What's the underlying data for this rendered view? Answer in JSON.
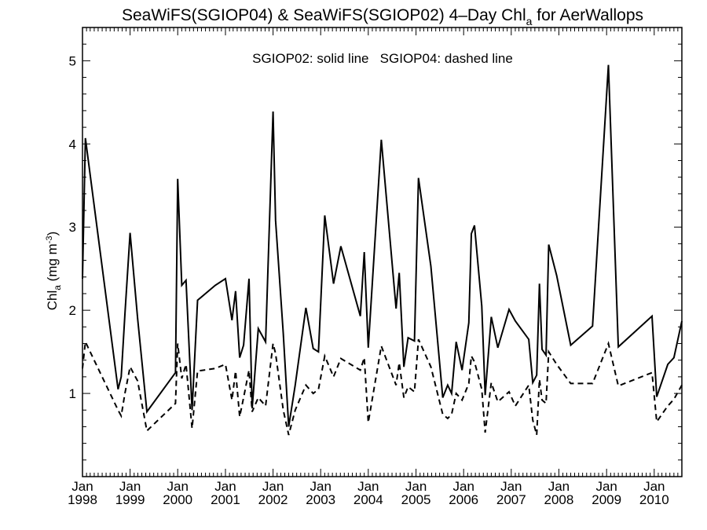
{
  "chart_data": {
    "type": "line",
    "title": {
      "main": "SeaWiFS(SGIOP04) & SeaWiFS(SGIOP02) 4–Day Chl",
      "sub": "a",
      "tail": " for AerWallops"
    },
    "legend": "SGIOP02: solid line   SGIOP04: dashed line",
    "ylabel": {
      "main": "Chl",
      "sub": "a",
      "unit": " (mg m",
      "sup": "-3",
      "close": ")"
    },
    "yticks": [
      "1",
      "2",
      "3",
      "4",
      "5"
    ],
    "xticks": [
      {
        "month": "Jan",
        "year": "1998"
      },
      {
        "month": "Jan",
        "year": "1999"
      },
      {
        "month": "Jan",
        "year": "2000"
      },
      {
        "month": "Jan",
        "year": "2001"
      },
      {
        "month": "Jan",
        "year": "2002"
      },
      {
        "month": "Jan",
        "year": "2003"
      },
      {
        "month": "Jan",
        "year": "2004"
      },
      {
        "month": "Jan",
        "year": "2005"
      },
      {
        "month": "Jan",
        "year": "2006"
      },
      {
        "month": "Jan",
        "year": "2007"
      },
      {
        "month": "Jan",
        "year": "2008"
      },
      {
        "month": "Jan",
        "year": "2009"
      },
      {
        "month": "Jan",
        "year": "2010"
      }
    ],
    "xlim": [
      "1998-01-01",
      "2010-08-01"
    ],
    "ylim": [
      0,
      5.4
    ],
    "series": [
      {
        "name": "SGIOP02",
        "style": "solid",
        "color": "#000000",
        "points": [
          [
            "1998-01-01",
            2.38
          ],
          [
            "1998-01-23",
            4.07
          ],
          [
            "1998-10-01",
            1.05
          ],
          [
            "1998-10-25",
            1.2
          ],
          [
            "1998-11-22",
            1.95
          ],
          [
            "1999-01-01",
            2.93
          ],
          [
            "1999-02-28",
            1.9
          ],
          [
            "1999-05-10",
            0.78
          ],
          [
            "1999-12-15",
            1.25
          ],
          [
            "2000-01-01",
            3.58
          ],
          [
            "2000-02-01",
            2.3
          ],
          [
            "2000-03-05",
            2.36
          ],
          [
            "2000-04-20",
            0.8
          ],
          [
            "2000-06-01",
            2.12
          ],
          [
            "2000-10-15",
            2.3
          ],
          [
            "2001-01-01",
            2.38
          ],
          [
            "2001-02-20",
            1.88
          ],
          [
            "2001-03-20",
            2.23
          ],
          [
            "2001-04-20",
            1.43
          ],
          [
            "2001-05-20",
            1.58
          ],
          [
            "2001-07-01",
            2.38
          ],
          [
            "2001-07-25",
            0.82
          ],
          [
            "2001-09-10",
            1.78
          ],
          [
            "2001-11-05",
            1.62
          ],
          [
            "2002-01-01",
            4.39
          ],
          [
            "2002-01-20",
            3.08
          ],
          [
            "2002-03-20",
            1.72
          ],
          [
            "2002-05-01",
            0.6
          ],
          [
            "2002-06-20",
            1.1
          ],
          [
            "2002-09-10",
            2.03
          ],
          [
            "2002-11-05",
            1.54
          ],
          [
            "2002-12-15",
            1.5
          ],
          [
            "2003-02-01",
            3.14
          ],
          [
            "2003-04-10",
            2.32
          ],
          [
            "2003-06-05",
            2.77
          ],
          [
            "2003-11-01",
            1.93
          ],
          [
            "2003-12-01",
            2.7
          ],
          [
            "2004-01-01",
            1.55
          ],
          [
            "2004-04-10",
            4.05
          ],
          [
            "2004-08-01",
            2.02
          ],
          [
            "2004-08-25",
            2.45
          ],
          [
            "2004-09-30",
            1.32
          ],
          [
            "2004-11-01",
            1.67
          ],
          [
            "2004-12-20",
            1.63
          ],
          [
            "2005-01-20",
            3.59
          ],
          [
            "2005-04-25",
            2.53
          ],
          [
            "2005-07-25",
            0.95
          ],
          [
            "2005-09-01",
            1.1
          ],
          [
            "2005-10-01",
            1.0
          ],
          [
            "2005-11-05",
            1.62
          ],
          [
            "2005-12-20",
            1.28
          ],
          [
            "2006-02-10",
            1.85
          ],
          [
            "2006-03-01",
            2.92
          ],
          [
            "2006-03-25",
            3.02
          ],
          [
            "2006-05-20",
            2.05
          ],
          [
            "2006-06-15",
            0.98
          ],
          [
            "2006-08-01",
            1.92
          ],
          [
            "2006-09-20",
            1.55
          ],
          [
            "2006-12-15",
            2.01
          ],
          [
            "2007-02-01",
            1.87
          ],
          [
            "2007-05-15",
            1.65
          ],
          [
            "2007-06-15",
            1.13
          ],
          [
            "2007-07-15",
            1.22
          ],
          [
            "2007-08-05",
            2.32
          ],
          [
            "2007-08-25",
            1.53
          ],
          [
            "2007-09-25",
            1.46
          ],
          [
            "2007-10-15",
            2.79
          ],
          [
            "2007-12-15",
            2.42
          ],
          [
            "2008-04-01",
            1.58
          ],
          [
            "2008-09-15",
            1.81
          ],
          [
            "2009-01-15",
            4.95
          ],
          [
            "2009-04-01",
            1.56
          ],
          [
            "2009-12-15",
            1.93
          ],
          [
            "2010-01-20",
            0.96
          ],
          [
            "2010-04-15",
            1.35
          ],
          [
            "2010-06-01",
            1.43
          ],
          [
            "2010-08-01",
            1.87
          ]
        ]
      },
      {
        "name": "SGIOP04",
        "style": "dashed",
        "color": "#000000",
        "points": [
          [
            "1998-01-01",
            1.3
          ],
          [
            "1998-01-23",
            1.62
          ],
          [
            "1998-10-01",
            0.8
          ],
          [
            "1998-10-25",
            0.73
          ],
          [
            "1998-11-22",
            1.0
          ],
          [
            "1999-01-01",
            1.32
          ],
          [
            "1999-02-28",
            1.15
          ],
          [
            "1999-05-10",
            0.55
          ],
          [
            "1999-12-15",
            0.88
          ],
          [
            "2000-01-01",
            1.6
          ],
          [
            "2000-02-01",
            1.18
          ],
          [
            "2000-03-05",
            1.35
          ],
          [
            "2000-04-20",
            0.58
          ],
          [
            "2000-06-01",
            1.27
          ],
          [
            "2000-10-15",
            1.3
          ],
          [
            "2001-01-01",
            1.35
          ],
          [
            "2001-02-20",
            0.92
          ],
          [
            "2001-03-20",
            1.27
          ],
          [
            "2001-04-20",
            0.72
          ],
          [
            "2001-05-20",
            0.95
          ],
          [
            "2001-07-01",
            1.28
          ],
          [
            "2001-07-25",
            0.78
          ],
          [
            "2001-09-10",
            0.95
          ],
          [
            "2001-11-05",
            0.85
          ],
          [
            "2002-01-01",
            1.6
          ],
          [
            "2002-01-20",
            1.48
          ],
          [
            "2002-03-20",
            0.8
          ],
          [
            "2002-05-01",
            0.5
          ],
          [
            "2002-06-20",
            0.8
          ],
          [
            "2002-09-10",
            1.1
          ],
          [
            "2002-11-05",
            1.0
          ],
          [
            "2002-12-15",
            1.05
          ],
          [
            "2003-02-01",
            1.45
          ],
          [
            "2003-04-10",
            1.2
          ],
          [
            "2003-06-05",
            1.42
          ],
          [
            "2003-11-01",
            1.28
          ],
          [
            "2003-12-01",
            1.43
          ],
          [
            "2004-01-01",
            0.65
          ],
          [
            "2004-04-10",
            1.57
          ],
          [
            "2004-08-01",
            1.1
          ],
          [
            "2004-08-25",
            1.37
          ],
          [
            "2004-09-30",
            0.95
          ],
          [
            "2004-11-01",
            1.08
          ],
          [
            "2004-12-20",
            1.02
          ],
          [
            "2005-01-20",
            1.65
          ],
          [
            "2005-04-25",
            1.32
          ],
          [
            "2005-07-25",
            0.75
          ],
          [
            "2005-09-01",
            0.7
          ],
          [
            "2005-10-01",
            0.75
          ],
          [
            "2005-11-05",
            1.0
          ],
          [
            "2005-12-20",
            0.92
          ],
          [
            "2006-02-10",
            1.12
          ],
          [
            "2006-03-01",
            1.45
          ],
          [
            "2006-03-25",
            1.38
          ],
          [
            "2006-05-20",
            1.05
          ],
          [
            "2006-06-15",
            0.53
          ],
          [
            "2006-08-01",
            1.13
          ],
          [
            "2006-09-20",
            0.9
          ],
          [
            "2006-12-15",
            1.02
          ],
          [
            "2007-02-01",
            0.85
          ],
          [
            "2007-05-15",
            1.1
          ],
          [
            "2007-06-15",
            0.68
          ],
          [
            "2007-07-15",
            0.5
          ],
          [
            "2007-08-05",
            1.17
          ],
          [
            "2007-08-25",
            0.92
          ],
          [
            "2007-09-25",
            0.88
          ],
          [
            "2007-10-15",
            1.5
          ],
          [
            "2007-12-15",
            1.35
          ],
          [
            "2008-04-01",
            1.12
          ],
          [
            "2008-09-15",
            1.12
          ],
          [
            "2009-01-15",
            1.6
          ],
          [
            "2009-04-01",
            1.09
          ],
          [
            "2009-12-15",
            1.25
          ],
          [
            "2010-01-20",
            0.66
          ],
          [
            "2010-04-15",
            0.85
          ],
          [
            "2010-06-01",
            0.93
          ],
          [
            "2010-08-01",
            1.1
          ]
        ]
      }
    ]
  }
}
